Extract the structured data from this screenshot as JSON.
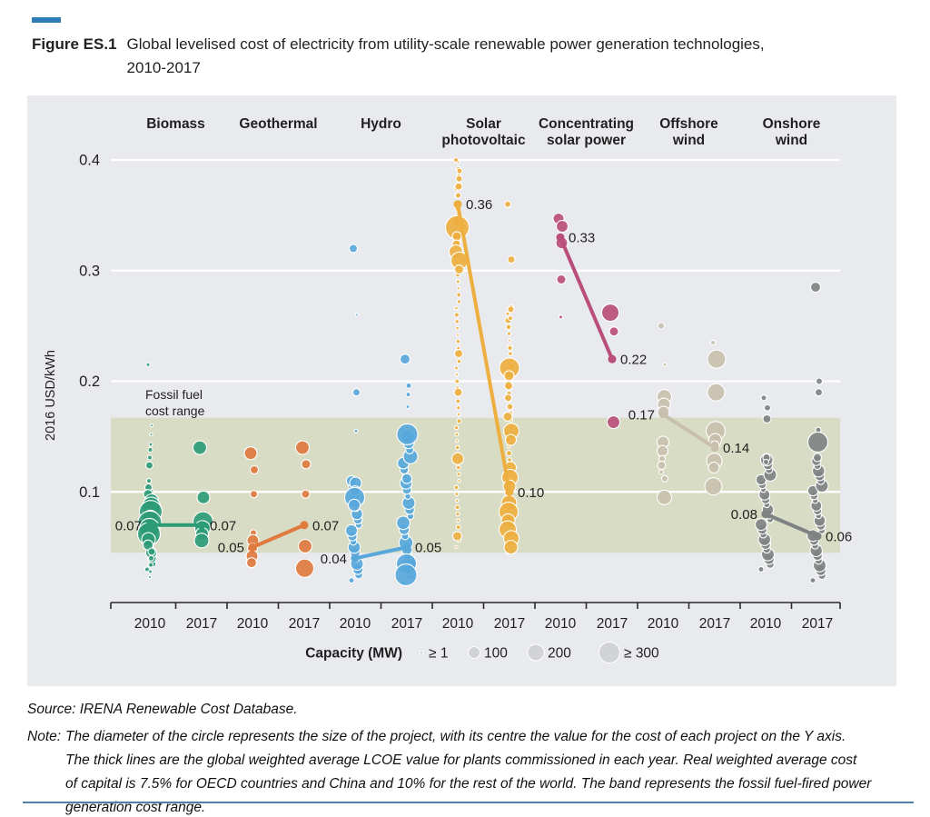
{
  "figure": {
    "label": "Figure ES.1",
    "title_line1": "Global levelised cost of electricity from utility-scale renewable power generation technologies,",
    "title_line2": "2010-2017"
  },
  "footer": {
    "source": "Source: IRENA Renewable Cost Database.",
    "note_label": "Note:",
    "note_lines": [
      "The diameter of the circle represents the size of the project, with its centre the value for the cost of each project on the Y axis.",
      "The thick lines are the global weighted average LCOE value for plants commissioned in each year. Real weighted average cost",
      "of capital is 7.5% for OECD countries and China and 10% for the rest of the world. The band represents the fossil fuel-fired power",
      "generation cost range."
    ]
  },
  "chart_data": {
    "type": "bubble",
    "title": "Global levelised cost of electricity from utility-scale renewable power generation technologies, 2010-2017",
    "ylabel": "2016 USD/kWh",
    "y_ticks": [
      0.4,
      0.3,
      0.2,
      0.1
    ],
    "ylim": [
      0,
      0.42
    ],
    "grid": "horizontal white gridlines on grey panel",
    "years": [
      "2010",
      "2017"
    ],
    "fossil_band": {
      "label_line1": "Fossil fuel",
      "label_line2": "cost range",
      "min": 0.045,
      "max": 0.167,
      "color": "#d8dcc4"
    },
    "legend": {
      "title": "Capacity (MW)",
      "circle_color": "#d1d3d6",
      "items": [
        {
          "label": "≥ 1",
          "d": 4
        },
        {
          "label": "100",
          "d": 13
        },
        {
          "label": "200",
          "d": 18
        },
        {
          "label": "≥ 300",
          "d": 23
        }
      ]
    },
    "groups": [
      {
        "name_lines": [
          "Biomass"
        ],
        "color": "#2E9B77",
        "avg": [
          0.07,
          0.07
        ],
        "avg_labels": [
          "0.07",
          "0.07"
        ],
        "label_sides": [
          "left",
          "right"
        ],
        "spray_2010": {
          "from": 0.03,
          "to": 0.1,
          "step": 0.005,
          "dmin": 5,
          "dmax": 12,
          "jx": 3
        },
        "bubbles_2010": [
          [
            0.215,
            4
          ],
          [
            0.16,
            3
          ],
          [
            0.152,
            3
          ],
          [
            0.143,
            4
          ],
          [
            0.138,
            5
          ],
          [
            0.131,
            5
          ],
          [
            0.124,
            8
          ],
          [
            0.11,
            5
          ],
          [
            0.104,
            8
          ],
          [
            0.098,
            10
          ],
          [
            0.092,
            15
          ],
          [
            0.087,
            20
          ],
          [
            0.082,
            25
          ],
          [
            0.076,
            18
          ],
          [
            0.072,
            26
          ],
          [
            0.067,
            22
          ],
          [
            0.062,
            25
          ],
          [
            0.057,
            15
          ],
          [
            0.052,
            11
          ],
          [
            0.046,
            8
          ],
          [
            0.04,
            6
          ],
          [
            0.034,
            5
          ],
          [
            0.028,
            4
          ],
          [
            0.023,
            3
          ]
        ],
        "bubbles_2017": [
          [
            0.14,
            15
          ],
          [
            0.095,
            14
          ],
          [
            0.073,
            22
          ],
          [
            0.067,
            17
          ],
          [
            0.062,
            14
          ],
          [
            0.056,
            16
          ]
        ]
      },
      {
        "name_lines": [
          "Geothermal"
        ],
        "color": "#E07A3F",
        "avg": [
          0.05,
          0.07
        ],
        "avg_labels": [
          "0.05",
          "0.07"
        ],
        "label_sides": [
          "left",
          "right"
        ],
        "bubbles_2010": [
          [
            0.135,
            14
          ],
          [
            0.12,
            9
          ],
          [
            0.098,
            8
          ],
          [
            0.063,
            7
          ],
          [
            0.056,
            13
          ],
          [
            0.049,
            11
          ],
          [
            0.042,
            13
          ],
          [
            0.036,
            11
          ]
        ],
        "bubbles_2017": [
          [
            0.14,
            15
          ],
          [
            0.125,
            10
          ],
          [
            0.098,
            9
          ],
          [
            0.051,
            15
          ],
          [
            0.031,
            20
          ]
        ]
      },
      {
        "name_lines": [
          "Hydro"
        ],
        "color": "#58A7DB",
        "avg": [
          0.04,
          0.05
        ],
        "avg_labels": [
          "0.04",
          "0.05"
        ],
        "label_sides": [
          "left",
          "right"
        ],
        "spray_2010": {
          "from": 0.02,
          "to": 0.11,
          "step": 0.005,
          "dmin": 6,
          "dmax": 14,
          "jx": 4
        },
        "spray_2017": {
          "from": 0.018,
          "to": 0.15,
          "step": 0.006,
          "dmin": 6,
          "dmax": 16,
          "jx": 4
        },
        "bubbles_2010": [
          [
            0.32,
            9
          ],
          [
            0.26,
            3
          ],
          [
            0.19,
            8
          ],
          [
            0.155,
            4
          ],
          [
            0.108,
            13
          ],
          [
            0.101,
            11
          ],
          [
            0.095,
            22
          ],
          [
            0.088,
            13
          ]
        ],
        "bubbles_2017": [
          [
            0.22,
            11
          ],
          [
            0.196,
            6
          ],
          [
            0.188,
            5
          ],
          [
            0.177,
            4
          ],
          [
            0.152,
            23
          ],
          [
            0.112,
            11
          ],
          [
            0.035,
            22
          ],
          [
            0.025,
            24
          ]
        ]
      },
      {
        "name_lines": [
          "Solar",
          "photovoltaic"
        ],
        "color": "#EDAF3F",
        "avg": [
          0.36,
          0.1
        ],
        "avg_labels": [
          "0.36",
          "0.10"
        ],
        "label_sides": [
          "right",
          "right"
        ],
        "spray_2010": {
          "from": 0.05,
          "to": 0.4,
          "step": 0.006,
          "dmin": 3,
          "dmax": 5,
          "jx": 1.5
        },
        "spray_2017": {
          "from": 0.045,
          "to": 0.27,
          "step": 0.006,
          "dmin": 3,
          "dmax": 7,
          "jx": 2
        },
        "bubbles_2010": [
          [
            0.4,
            5
          ],
          [
            0.39,
            6
          ],
          [
            0.383,
            7
          ],
          [
            0.376,
            8
          ],
          [
            0.368,
            6
          ],
          [
            0.345,
            12
          ],
          [
            0.339,
            26
          ],
          [
            0.331,
            10
          ],
          [
            0.324,
            9
          ],
          [
            0.317,
            15
          ],
          [
            0.309,
            19
          ],
          [
            0.301,
            10
          ],
          [
            0.225,
            9
          ],
          [
            0.19,
            9
          ],
          [
            0.13,
            13
          ],
          [
            0.06,
            10
          ]
        ],
        "bubbles_2017": [
          [
            0.36,
            7
          ],
          [
            0.31,
            8
          ],
          [
            0.265,
            7
          ],
          [
            0.257,
            5
          ],
          [
            0.23,
            5
          ],
          [
            0.212,
            22
          ],
          [
            0.205,
            11
          ],
          [
            0.196,
            9
          ],
          [
            0.185,
            8
          ],
          [
            0.168,
            10
          ],
          [
            0.155,
            17
          ],
          [
            0.147,
            12
          ],
          [
            0.122,
            13
          ],
          [
            0.113,
            18
          ],
          [
            0.105,
            14
          ],
          [
            0.09,
            17
          ],
          [
            0.082,
            21
          ],
          [
            0.074,
            15
          ],
          [
            0.066,
            19
          ],
          [
            0.058,
            17
          ],
          [
            0.05,
            15
          ]
        ]
      },
      {
        "name_lines": [
          "Concentrating",
          "solar power"
        ],
        "color": "#BA4E7A",
        "avg": [
          0.33,
          0.22
        ],
        "avg_labels": [
          "0.33",
          "0.22"
        ],
        "label_sides": [
          "right",
          "right"
        ],
        "bubbles_2010": [
          [
            0.347,
            12
          ],
          [
            0.34,
            13
          ],
          [
            0.325,
            13
          ],
          [
            0.292,
            10
          ],
          [
            0.258,
            4
          ]
        ],
        "bubbles_2017": [
          [
            0.262,
            19
          ],
          [
            0.245,
            10
          ],
          [
            0.163,
            14
          ]
        ]
      },
      {
        "name_lines": [
          "Offshore",
          "wind"
        ],
        "color": "#C8C0AC",
        "avg": [
          0.17,
          0.14
        ],
        "avg_labels": [
          "0.17",
          "0.14"
        ],
        "label_sides": [
          "left",
          "right"
        ],
        "bubbles_2010": [
          [
            0.25,
            7
          ],
          [
            0.215,
            4
          ],
          [
            0.186,
            16
          ],
          [
            0.179,
            14
          ],
          [
            0.172,
            13
          ],
          [
            0.145,
            13
          ],
          [
            0.137,
            12
          ],
          [
            0.13,
            7
          ],
          [
            0.124,
            9
          ],
          [
            0.118,
            5
          ],
          [
            0.112,
            7
          ],
          [
            0.095,
            16
          ]
        ],
        "bubbles_2017": [
          [
            0.235,
            5
          ],
          [
            0.22,
            20
          ],
          [
            0.19,
            19
          ],
          [
            0.155,
            21
          ],
          [
            0.147,
            14
          ],
          [
            0.142,
            10
          ],
          [
            0.128,
            17
          ],
          [
            0.122,
            12
          ],
          [
            0.105,
            19
          ]
        ]
      },
      {
        "name_lines": [
          "Onshore",
          "wind"
        ],
        "color": "#7F8283",
        "avg": [
          0.08,
          0.06
        ],
        "avg_labels": [
          "0.08",
          "0.06"
        ],
        "label_sides": [
          "left",
          "right"
        ],
        "spray_2010": {
          "from": 0.03,
          "to": 0.13,
          "step": 0.0045,
          "dmin": 6,
          "dmax": 14,
          "jx": 5
        },
        "spray_2017": {
          "from": 0.02,
          "to": 0.13,
          "step": 0.0045,
          "dmin": 6,
          "dmax": 14,
          "jx": 5
        },
        "bubbles_2010": [
          [
            0.185,
            6
          ],
          [
            0.176,
            7
          ],
          [
            0.166,
            9
          ],
          [
            0.131,
            8
          ],
          [
            0.127,
            6
          ]
        ],
        "bubbles_2017": [
          [
            0.285,
            11
          ],
          [
            0.2,
            7
          ],
          [
            0.19,
            8
          ],
          [
            0.156,
            6
          ],
          [
            0.145,
            22
          ],
          [
            0.131,
            9
          ]
        ]
      }
    ]
  }
}
